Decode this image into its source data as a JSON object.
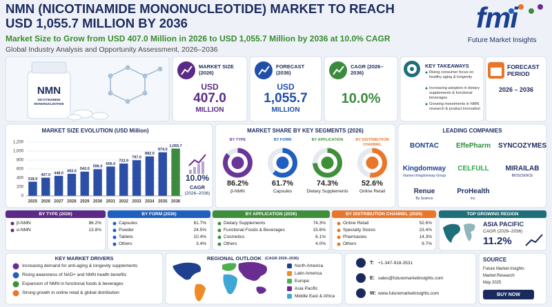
{
  "header": {
    "title": "NMN (NICOTINAMIDE MONONUCLEOTIDE) MARKET TO REACH USD 1,055.7 MILLION BY 2036",
    "subtitle": "Market Size to Grow from USD 407.0 Million in 2026 to USD 1,055.7 Million by 2036 at 10.0% CAGR",
    "tagline": "Global Industry Analysis and Opportunity Assessment, 2026–2036",
    "logo": {
      "mark": "fmi",
      "name": "Future Market Insights"
    }
  },
  "product": {
    "label": "NMN",
    "sublabel": "NICOTINAMIDE MONONUCLEOTIDE"
  },
  "kpis": [
    {
      "label": "MARKET SIZE (2026)",
      "prefix": "USD",
      "value": "407.0",
      "unit": "MILLION",
      "color": "#5b2a86"
    },
    {
      "label": "FORECAST (2036)",
      "prefix": "USD",
      "value": "1,055.7",
      "unit": "MILLION",
      "color": "#1f4fa8"
    },
    {
      "label": "CAGR (2026–2036)",
      "value": "10.0%",
      "color": "#3b8a3e"
    }
  ],
  "takeaways": {
    "title": "KEY TAKEAWAYS",
    "items": [
      "Rising consumer focus on healthy aging & longevity",
      "Increasing adoption in dietary supplements & functional beverages",
      "Growing investments in NMN research & product innovation"
    ]
  },
  "forecast_period": {
    "title": "FORECAST PERIOD",
    "value": "2026 – 2036"
  },
  "chart_data": [
    {
      "type": "bar",
      "title": "MARKET SIZE EVOLUTION (USD Million)",
      "categories": [
        "2025",
        "2026",
        "2027",
        "2028",
        "2029",
        "2030",
        "2031",
        "2032",
        "2033",
        "2034",
        "2035",
        "2036"
      ],
      "values": [
        318.0,
        407.0,
        448.0,
        493.0,
        542.0,
        596.0,
        656.0,
        722.0,
        797.0,
        882.0,
        974.0,
        1055.7
      ],
      "value_labels": [
        "318.0",
        "407.0",
        "448.0",
        "493.0",
        "542.0",
        "596.0",
        "656.0",
        "722.0",
        "797.0",
        "882.0",
        "974.0",
        "1,055.7"
      ],
      "colors": [
        "#2b4fa6",
        "#2b4fa6",
        "#2b4fa6",
        "#2b4fa6",
        "#2b4fa6",
        "#2b4fa6",
        "#2b4fa6",
        "#2b4fa6",
        "#2b4fa6",
        "#2b4fa6",
        "#2b4fa6",
        "#3b8a3e"
      ],
      "ylim": [
        0,
        1200
      ],
      "yticks": [
        0,
        200,
        400,
        600,
        800,
        {
          "value": 1000,
          "label": "1,000"
        },
        {
          "value": 1200,
          "label": "1,200"
        }
      ],
      "grid": true,
      "annotation": {
        "value": "10.0%",
        "label": "CAGR",
        "period": "(2026–2036)"
      }
    },
    {
      "type": "donut",
      "title": "BY TYPE",
      "categories": [
        "β-NMN"
      ],
      "values": [
        86.2
      ],
      "value_labels": [
        "86.2%"
      ],
      "ylim": [
        0,
        100
      ],
      "color": "#6a3596"
    },
    {
      "type": "donut",
      "title": "BY FORM",
      "categories": [
        "Capsules"
      ],
      "values": [
        61.7
      ],
      "value_labels": [
        "61.7%"
      ],
      "ylim": [
        0,
        100
      ],
      "color": "#1f5fbf"
    },
    {
      "type": "donut",
      "title": "BY APPLICATION",
      "categories": [
        "Dietary Supplements"
      ],
      "values": [
        74.3
      ],
      "value_labels": [
        "74.3%"
      ],
      "ylim": [
        0,
        100
      ],
      "color": "#3f8f3a"
    },
    {
      "type": "donut",
      "title": "BY DISTRIBUTION CHANNEL",
      "categories": [
        "Online Retail"
      ],
      "values": [
        52.6
      ],
      "value_labels": [
        "52.6%"
      ],
      "ylim": [
        0,
        100
      ],
      "color": "#e8762b"
    }
  ],
  "market_share": {
    "title": "MARKET SHARE BY KEY SEGMENTS (2026)"
  },
  "companies": {
    "title": "LEADING COMPANIES",
    "items": [
      {
        "name": "BONTAC",
        "color": "#1b3f8f"
      },
      {
        "name": "EffePharm",
        "color": "#2e8b3a"
      },
      {
        "name": "SYNCOZYMES",
        "color": "#1b2a5e"
      },
      {
        "name": "Kingdomway",
        "sub": "Xiamen Kingdomway Group",
        "color": "#1b3f8f"
      },
      {
        "name": "CELFULL",
        "color": "#2aa84a"
      },
      {
        "name": "MIRAILAB",
        "sub": "BIOSCIENCE",
        "color": "#1b2a5e"
      },
      {
        "name": "Renue",
        "sub": "By Science",
        "color": "#1b2a5e"
      },
      {
        "name": "ProHealth",
        "sub": "inc.",
        "color": "#1b2a5e"
      }
    ]
  },
  "segments": [
    {
      "title": "BY TYPE (2026)",
      "color": "#5b2a86",
      "rows": [
        [
          "β-NMN",
          "86.2%"
        ],
        [
          "α-NMN",
          "13.8%"
        ]
      ]
    },
    {
      "title": "BY FORM (2026)",
      "color": "#1f5fbf",
      "rows": [
        [
          "Capsules",
          "61.7%"
        ],
        [
          "Powder",
          "24.5%"
        ],
        [
          "Tablets",
          "10.4%"
        ],
        [
          "Others",
          "3.4%"
        ]
      ]
    },
    {
      "title": "BY APPLICATION (2026)",
      "color": "#3f8f3a",
      "rows": [
        [
          "Dietary Supplements",
          "74.3%"
        ],
        [
          "Functional Foods & Beverages",
          "15.6%"
        ],
        [
          "Cosmetics",
          "6.1%"
        ],
        [
          "Others",
          "4.0%"
        ]
      ]
    },
    {
      "title": "BY DISTRIBUTION CHANNEL (2026)",
      "color": "#e8762b",
      "rows": [
        [
          "Online Retail",
          "52.6%"
        ],
        [
          "Specialty Stores",
          "23.4%"
        ],
        [
          "Pharmacies",
          "14.3%"
        ],
        [
          "Others",
          "9.7%"
        ]
      ]
    }
  ],
  "top_region": {
    "title": "TOP GROWING REGION",
    "region": "ASIA PACIFIC",
    "label": "CAGR (2026–2036)",
    "value": "11.2%",
    "color": "#1f6f7a"
  },
  "drivers": {
    "title": "KEY MARKET DRIVERS",
    "items": [
      "Increasing demand for anti-aging & longevity supplements",
      "Rising awareness of NAD+ and NMN health benefits",
      "Expansion of NMN in functional foods & beverages",
      "Strong growth in online retail & global distribution"
    ]
  },
  "regional_outlook": {
    "title": "REGIONAL OUTLOOK",
    "subtitle": "(CAGR 2026–2036)",
    "legend": [
      {
        "name": "North America",
        "color": "#1f3f8f"
      },
      {
        "name": "Latin America",
        "color": "#f08a24"
      },
      {
        "name": "Europe",
        "color": "#4caf50"
      },
      {
        "name": "Asia Pacific",
        "color": "#6a2c91"
      },
      {
        "name": "Middle East & Africa",
        "color": "#3fa7d6"
      }
    ]
  },
  "contact": {
    "phone": {
      "label": "T:",
      "value": "+1-347-918-3531"
    },
    "email": {
      "label": "E:",
      "value": "sales@futuremarketinsights.com"
    },
    "web": {
      "label": "W:",
      "value": "www.futuremarketinsights.com"
    }
  },
  "source": {
    "title": "SOURCE",
    "lines": [
      "Future Market Insights",
      "Market Research",
      "May 2025"
    ],
    "button": "BUY NOW"
  }
}
